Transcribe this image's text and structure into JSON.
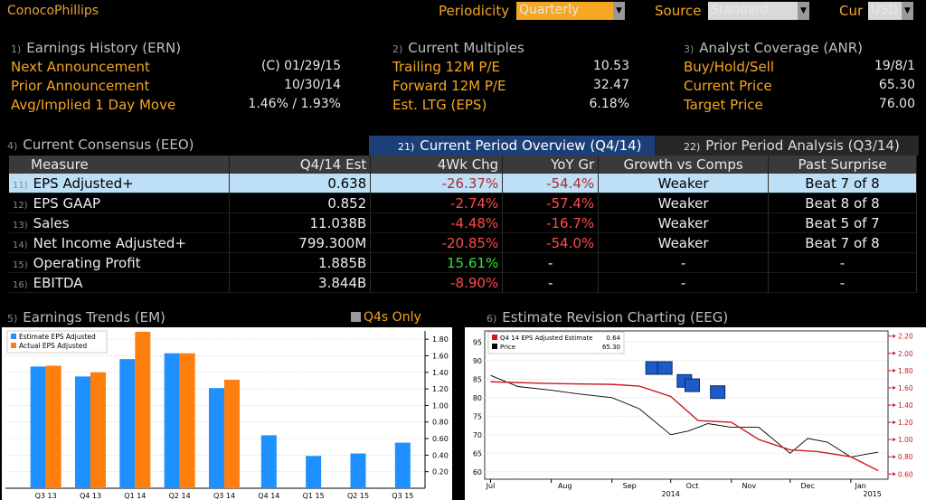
{
  "header": {
    "company": "ConocoPhillips",
    "periodicity_label": "Periodicity",
    "periodicity_value": "Quarterly",
    "source_label": "Source",
    "source_value": "Standard",
    "cur_label": "Cur",
    "cur_value": "USD"
  },
  "earnings_history": {
    "num": "1)",
    "title": "Earnings History (ERN)",
    "rows": [
      {
        "label": "Next Announcement",
        "value": "(C)  01/29/15"
      },
      {
        "label": "Prior Announcement",
        "value": "10/30/14"
      },
      {
        "label": "Avg/Implied 1 Day Move",
        "value": "1.46% / 1.93%"
      }
    ]
  },
  "current_multiples": {
    "num": "2)",
    "title": "Current Multiples",
    "rows": [
      {
        "label": "Trailing 12M P/E",
        "value": "10.53"
      },
      {
        "label": "Forward 12M P/E",
        "value": "32.47"
      },
      {
        "label": "Est. LTG (EPS)",
        "value": "6.18%"
      }
    ]
  },
  "analyst_coverage": {
    "num": "3)",
    "title": "Analyst Coverage (ANR)",
    "rows": [
      {
        "label": "Buy/Hold/Sell",
        "value": "19/8/1"
      },
      {
        "label": "Current Price",
        "value": "65.30"
      },
      {
        "label": "Target Price",
        "value": "76.00"
      }
    ]
  },
  "consensus": {
    "num": "4)",
    "title": "Current Consensus (EEO)",
    "tab_current": {
      "num": "21)",
      "label": "Current Period Overview (Q4/14)"
    },
    "tab_prior": {
      "num": "22)",
      "label": "Prior Period Analysis (Q3/14)"
    },
    "columns": [
      "Measure",
      "Q4/14 Est",
      "4Wk Chg",
      "YoY Gr",
      "Growth vs Comps",
      "Past Surprise"
    ],
    "rows": [
      {
        "num": "11)",
        "measure": "EPS Adjusted+",
        "est": "0.638",
        "chg": "-26.37%",
        "yoy": "-54.4%",
        "growth": "Weaker",
        "surprise": "Beat 7 of 8"
      },
      {
        "num": "12)",
        "measure": "EPS GAAP",
        "est": "0.852",
        "chg": "-2.74%",
        "yoy": "-57.4%",
        "growth": "Weaker",
        "surprise": "Beat 8 of 8"
      },
      {
        "num": "13)",
        "measure": "Sales",
        "est": "11.038B",
        "chg": "-4.48%",
        "yoy": "-16.7%",
        "growth": "Weaker",
        "surprise": "Beat 5 of 7"
      },
      {
        "num": "14)",
        "measure": "Net Income Adjusted+",
        "est": "799.300M",
        "chg": "-20.85%",
        "yoy": "-54.0%",
        "growth": "Weaker",
        "surprise": "Beat 7 of 8"
      },
      {
        "num": "15)",
        "measure": "Operating Profit",
        "est": "1.885B",
        "chg": "15.61%",
        "yoy": "-",
        "growth": "-",
        "surprise": "-"
      },
      {
        "num": "16)",
        "measure": "EBITDA",
        "est": "3.844B",
        "chg": "-8.90%",
        "yoy": "-",
        "growth": "-",
        "surprise": "-"
      }
    ]
  },
  "earnings_trends": {
    "num": "5)",
    "title": "Earnings Trends (EM)",
    "q4s_only": "Q4s Only"
  },
  "revision": {
    "num": "6)",
    "title": "Estimate Revision Charting (EEG)"
  },
  "colors": {
    "estimate": "#1e90ff",
    "actual": "#ff7f0e",
    "price": "#000000",
    "estimate_line": "#d0181f",
    "selected_row": "#bde0f7",
    "accent": "#f5a623"
  },
  "chart_data": [
    {
      "type": "bar",
      "categories": [
        "Q3 13",
        "Q4 13",
        "Q1 14",
        "Q2 14",
        "Q3 14",
        "Q4 14",
        "Q1 15",
        "Q2 15",
        "Q3 15"
      ],
      "series": [
        {
          "name": "Estimate EPS Adjusted",
          "values": [
            1.47,
            1.35,
            1.56,
            1.63,
            1.21,
            0.64,
            0.39,
            0.42,
            0.55
          ]
        },
        {
          "name": "Actual EPS Adjusted",
          "values": [
            1.48,
            1.4,
            1.89,
            1.63,
            1.31,
            null,
            null,
            null,
            null
          ]
        }
      ],
      "yticks": [
        0.2,
        0.4,
        0.6,
        0.8,
        1.0,
        1.2,
        1.4,
        1.6,
        1.8
      ],
      "ylim": [
        0.0,
        1.9
      ],
      "legend": "top-left"
    },
    {
      "type": "line",
      "x_ticks": [
        "Jul",
        "Aug",
        "Sep",
        "Oct",
        "Nov",
        "Dec",
        "Jan"
      ],
      "x_year_ticks": [
        "2014",
        "2015"
      ],
      "left_ticks": [
        60,
        65,
        70,
        75,
        80,
        85,
        90,
        95
      ],
      "right_ticks": [
        "0.60",
        "0.80",
        "1.00",
        "1.20",
        "1.40",
        "1.60",
        "1.80",
        "2.00",
        "2.20"
      ],
      "legend_estimate_label": "Q4 14 EPS Adjusted Estimate",
      "legend_estimate_value": "0.64",
      "legend_price_label": "Price",
      "legend_price_value": "65.30",
      "series": [
        {
          "name": "Q4 14 EPS Adjusted Estimate",
          "axis": "right",
          "x": [
            "2014-07-01",
            "2014-08-01",
            "2014-09-01",
            "2014-09-15",
            "2014-10-01",
            "2014-10-15",
            "2014-11-01",
            "2014-11-15",
            "2014-12-01",
            "2014-12-15",
            "2015-01-01",
            "2015-01-15"
          ],
          "y": [
            1.67,
            1.65,
            1.64,
            1.62,
            1.5,
            1.22,
            1.2,
            1.0,
            0.88,
            0.86,
            0.8,
            0.64
          ]
        },
        {
          "name": "Price",
          "axis": "left",
          "x": [
            "2014-07-01",
            "2014-07-15",
            "2014-08-01",
            "2014-08-15",
            "2014-09-01",
            "2014-09-15",
            "2014-10-01",
            "2014-10-10",
            "2014-10-20",
            "2014-11-01",
            "2014-11-15",
            "2014-12-01",
            "2014-12-10",
            "2014-12-20",
            "2015-01-01",
            "2015-01-15"
          ],
          "y": [
            86,
            83,
            82,
            81,
            80,
            77,
            70,
            71,
            73,
            72,
            72,
            65,
            69,
            68,
            64,
            65.3
          ]
        }
      ]
    }
  ]
}
